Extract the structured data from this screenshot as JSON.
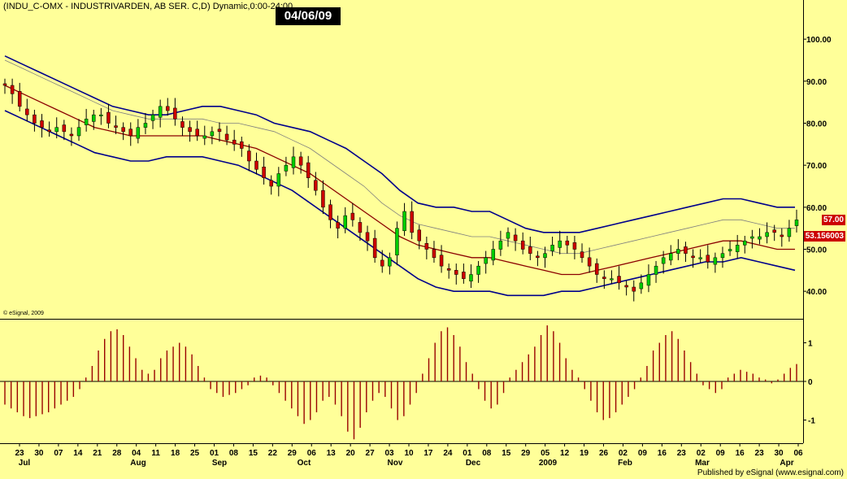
{
  "header": {
    "title": "(INDU_C-OMX - INDUSTRIVARDEN, AB SER. C,D) Dynamic,0:00-24:00",
    "date": "04/06/09",
    "copyright": "© eSignal, 2009",
    "publisher": "Published by eSignal (www.esignal.com)"
  },
  "colors": {
    "background": "#ffff99",
    "up_candle": "#00cc00",
    "down_candle": "#cc0000",
    "band_outer": "#00008b",
    "band_mid": "#8b0000",
    "band_inner": "#808080",
    "histogram": "#990000"
  },
  "chart_data": [
    {
      "type": "candlestick",
      "title": "",
      "x_tick_labels": [
        "23",
        "30",
        "07",
        "14",
        "21",
        "28",
        "04",
        "11",
        "18",
        "25",
        "01",
        "08",
        "15",
        "22",
        "29",
        "06",
        "13",
        "20",
        "27",
        "03",
        "10",
        "17",
        "24",
        "01",
        "08",
        "15",
        "29",
        "05",
        "12",
        "19",
        "26",
        "02",
        "09",
        "16",
        "23",
        "02",
        "09",
        "16",
        "23",
        "30",
        "06"
      ],
      "month_labels": [
        "Jul",
        "Aug",
        "Sep",
        "Oct",
        "Nov",
        "Dec",
        "2009",
        "Feb",
        "Mar",
        "Apr"
      ],
      "y_ticks": [
        "40.00",
        "50.00",
        "60.00",
        "70.00",
        "80.00",
        "90.00",
        "100.00"
      ],
      "ylim": [
        35,
        107
      ],
      "last_price": "57.00",
      "midline_value": "53.156003",
      "closes": [
        89,
        87,
        84,
        82,
        80,
        79,
        78,
        79,
        78,
        77,
        79,
        81,
        82,
        82,
        80,
        79,
        78,
        77,
        79,
        80,
        82,
        84,
        83,
        81,
        79,
        78,
        77,
        77,
        78,
        78,
        76,
        75,
        74,
        71,
        69,
        67,
        65,
        68,
        70,
        72,
        70,
        67,
        64,
        60,
        57,
        55,
        58,
        57,
        54,
        52,
        48,
        46,
        48,
        55,
        59,
        54,
        52,
        50,
        48,
        46,
        45,
        44,
        43,
        44,
        46,
        48,
        50,
        52,
        54,
        52,
        50,
        49,
        48,
        49,
        51,
        52,
        51,
        50,
        48,
        46,
        44,
        43,
        43,
        42,
        41,
        40,
        42,
        44,
        46,
        48,
        49,
        50,
        49,
        48,
        48,
        47,
        48,
        49,
        50,
        51,
        52,
        53,
        53,
        54,
        54,
        53,
        55,
        57
      ],
      "bands": {
        "upper_outer": [
          96,
          94,
          92,
          90,
          88,
          86,
          84,
          83,
          82,
          82,
          83,
          84,
          84,
          83,
          82,
          80,
          79,
          78,
          76,
          74,
          71,
          68,
          64,
          61,
          60,
          60,
          59,
          59,
          57,
          55,
          54,
          54,
          54,
          55,
          56,
          57,
          58,
          59,
          60,
          61,
          62,
          62,
          61,
          60,
          60
        ],
        "inner": [
          95,
          93,
          91,
          89,
          87,
          85,
          83,
          82,
          81,
          81,
          81,
          81,
          80,
          80,
          79,
          78,
          76,
          74,
          71,
          68,
          65,
          61,
          58,
          56,
          55,
          54,
          53,
          53,
          52,
          51,
          50,
          49,
          49,
          50,
          51,
          52,
          53,
          54,
          55,
          56,
          57,
          57,
          56,
          55,
          55
        ],
        "middle": [
          89,
          87,
          85,
          83,
          81,
          79,
          78,
          77,
          77,
          77,
          77,
          77,
          76,
          75,
          74,
          72,
          70,
          68,
          65,
          62,
          59,
          56,
          53,
          51,
          50,
          49,
          48,
          48,
          47,
          46,
          45,
          44,
          44,
          45,
          46,
          47,
          48,
          49,
          50,
          51,
          52,
          52,
          51,
          50,
          50
        ],
        "lower_outer": [
          83,
          81,
          79,
          77,
          75,
          73,
          72,
          71,
          71,
          72,
          72,
          72,
          71,
          70,
          68,
          66,
          64,
          61,
          58,
          55,
          52,
          49,
          46,
          43,
          41,
          40,
          40,
          40,
          39,
          39,
          39,
          40,
          40,
          41,
          42,
          43,
          44,
          45,
          46,
          47,
          47,
          48,
          47,
          46,
          45
        ]
      }
    },
    {
      "type": "bar",
      "title": "",
      "y_ticks": [
        "1",
        "0",
        "-1"
      ],
      "ylim": [
        -1.6,
        1.6
      ],
      "values": [
        -0.6,
        -0.7,
        -0.8,
        -0.9,
        -0.95,
        -0.9,
        -0.85,
        -0.8,
        -0.7,
        -0.6,
        -0.5,
        -0.4,
        -0.2,
        0.1,
        0.4,
        0.8,
        1.1,
        1.3,
        1.35,
        1.2,
        0.9,
        0.6,
        0.3,
        0.2,
        0.3,
        0.6,
        0.8,
        0.9,
        1.0,
        0.9,
        0.7,
        0.4,
        0.1,
        -0.2,
        -0.3,
        -0.4,
        -0.35,
        -0.3,
        -0.2,
        -0.1,
        0.1,
        0.15,
        0.1,
        -0.1,
        -0.3,
        -0.5,
        -0.7,
        -0.9,
        -1.1,
        -1.0,
        -0.8,
        -0.5,
        -0.4,
        -0.6,
        -0.9,
        -1.3,
        -1.5,
        -1.2,
        -0.8,
        -0.5,
        -0.3,
        -0.4,
        -0.7,
        -1.0,
        -0.9,
        -0.6,
        -0.3,
        0.2,
        0.6,
        1.0,
        1.3,
        1.4,
        1.2,
        0.9,
        0.5,
        0.2,
        -0.2,
        -0.5,
        -0.7,
        -0.6,
        -0.3,
        0.1,
        0.3,
        0.5,
        0.7,
        0.9,
        1.2,
        1.45,
        1.3,
        1.0,
        0.6,
        0.3,
        0.1,
        -0.2,
        -0.5,
        -0.8,
        -1.0,
        -0.95,
        -0.8,
        -0.6,
        -0.4,
        -0.2,
        0.1,
        0.4,
        0.8,
        1.0,
        1.2,
        1.3,
        1.1,
        0.8,
        0.5,
        0.2,
        -0.1,
        -0.2,
        -0.3,
        -0.2,
        0.1,
        0.2,
        0.3,
        0.25,
        0.2,
        0.1,
        0.05,
        -0.05,
        0.05,
        0.2,
        0.35,
        0.45
      ]
    }
  ]
}
